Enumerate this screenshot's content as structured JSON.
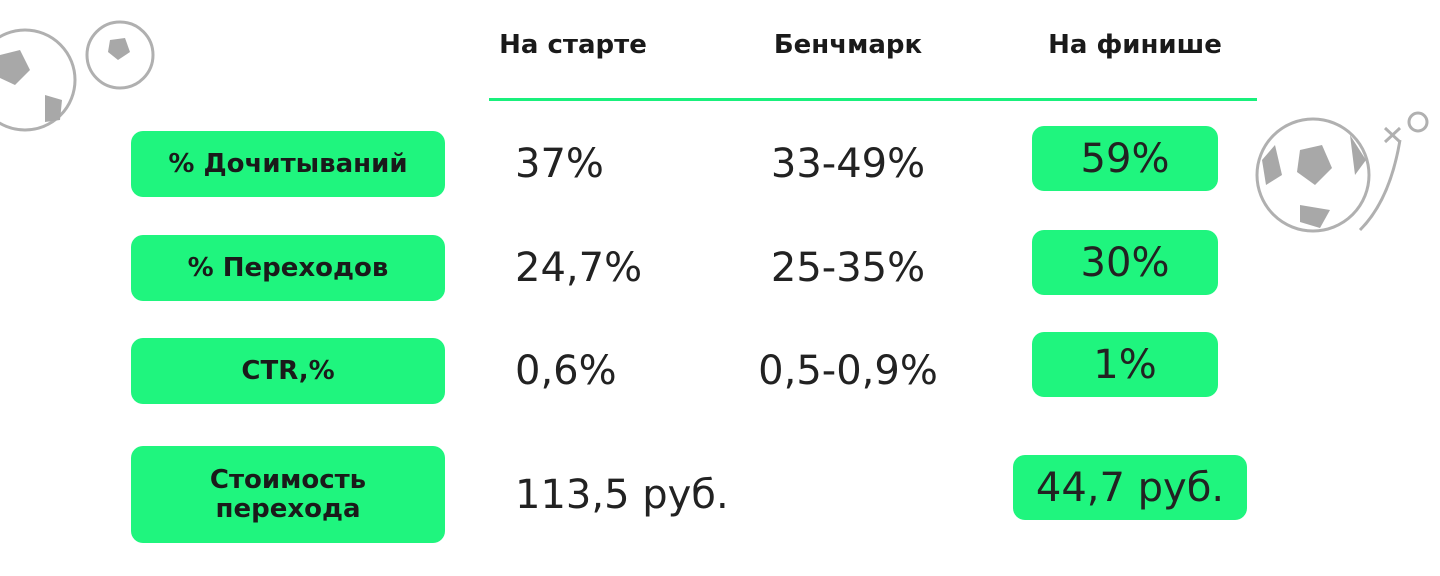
{
  "table": {
    "header": [
      "На старте",
      "Бенчмарк",
      "На финише"
    ],
    "rows": [
      {
        "label": "% Дочитываний",
        "start": "37%",
        "benchmark": "33-49%",
        "finish": "59%"
      },
      {
        "label": "% Переходов",
        "start": "24,7%",
        "benchmark": "25-35%",
        "finish": "30%"
      },
      {
        "label": "CTR,%",
        "start": "0,6%",
        "benchmark": "0,5-0,9%",
        "finish": "1%"
      },
      {
        "label": "Стоимость перехода",
        "start": "113,5 руб.",
        "finish": "44,7 руб."
      }
    ]
  }
}
